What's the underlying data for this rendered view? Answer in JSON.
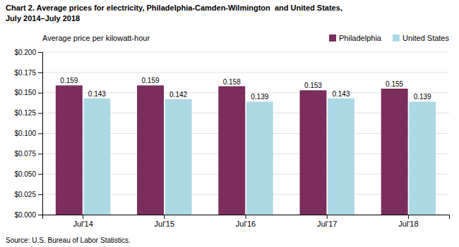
{
  "chart_data": {
    "type": "bar",
    "title": "Chart 2. Average prices for electricity, Philadelphia-Camden-Wilmington  and United States,",
    "subtitle": "July 2014–July 2018",
    "ylabel": "Average price per kilowatt-hour",
    "annotations": [
      "Source: U.S. Bureau of Labor Statistics."
    ],
    "categories": [
      "Jul'14",
      "Jul'15",
      "Jul'16",
      "Jul'17",
      "Jul'18"
    ],
    "series": [
      {
        "name": "Philadelphia",
        "color": "#7B2D5E",
        "values": [
          0.159,
          0.159,
          0.158,
          0.153,
          0.155
        ]
      },
      {
        "name": "United States",
        "color": "#ADD8E6",
        "values": [
          0.143,
          0.142,
          0.139,
          0.143,
          0.139
        ]
      }
    ],
    "ylim": [
      0.0,
      0.2
    ],
    "yticks": [
      {
        "value": 0.0,
        "label": "$0.000"
      },
      {
        "value": 0.025,
        "label": "$0.025"
      },
      {
        "value": 0.05,
        "label": "$0.050"
      },
      {
        "value": 0.075,
        "label": "$0.075"
      },
      {
        "value": 0.1,
        "label": "$0.100"
      },
      {
        "value": 0.125,
        "label": "$0.125"
      },
      {
        "value": 0.15,
        "label": "$0.150"
      },
      {
        "value": 0.175,
        "label": "$0.175"
      },
      {
        "value": 0.2,
        "label": "$0.200"
      }
    ],
    "grid": true,
    "legend": "upper right",
    "data_labels": true
  }
}
